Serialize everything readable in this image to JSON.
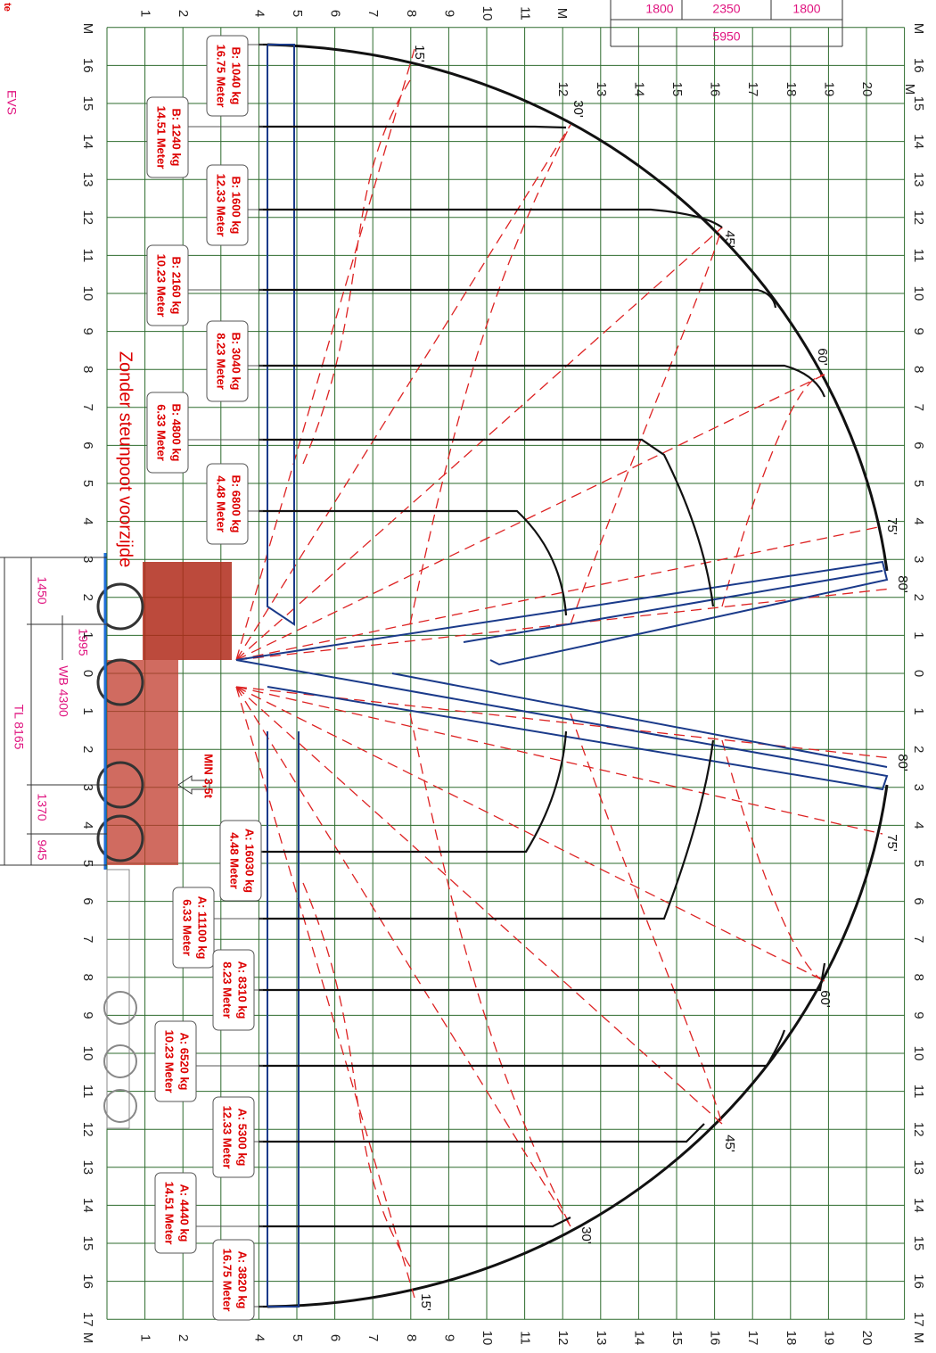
{
  "header": {
    "dims": [
      "1800",
      "2350",
      "1800"
    ],
    "total": "5950"
  },
  "axes": {
    "reach": [
      "M",
      "16",
      "15",
      "14",
      "13",
      "12",
      "11",
      "10",
      "9",
      "8",
      "7",
      "6",
      "5",
      "4",
      "3",
      "2",
      "1",
      "0",
      "1",
      "2",
      "3",
      "4",
      "5",
      "6",
      "7",
      "8",
      "9",
      "10",
      "11",
      "12",
      "13",
      "14",
      "15",
      "16",
      "17",
      "M"
    ],
    "height": [
      "1",
      "2",
      "4",
      "5",
      "6",
      "7",
      "8",
      "9",
      "10",
      "11",
      "12",
      "13",
      "14",
      "15",
      "16",
      "17",
      "18",
      "19",
      "20"
    ],
    "unit": "M"
  },
  "loads_b": [
    {
      "reach": "16.75 Meter",
      "load": "B: 1040 kg"
    },
    {
      "reach": "14.51 Meter",
      "load": "B: 1240 kg"
    },
    {
      "reach": "12.33 Meter",
      "load": "B: 1600 kg"
    },
    {
      "reach": "10.23 Meter",
      "load": "B: 2160 kg"
    },
    {
      "reach": "8.23 Meter",
      "load": "B: 3040 kg"
    },
    {
      "reach": "6.33 Meter",
      "load": "B: 4800 kg"
    },
    {
      "reach": "4.48 Meter",
      "load": "B: 6800 kg"
    }
  ],
  "loads_a": [
    {
      "reach": "4.48 Meter",
      "load": "A: 16030 kg"
    },
    {
      "reach": "6.33 Meter",
      "load": "A: 11100 kg"
    },
    {
      "reach": "8.23 Meter",
      "load": "A: 8310 kg"
    },
    {
      "reach": "10.23 Meter",
      "load": "A: 6520 kg"
    },
    {
      "reach": "12.33 Meter",
      "load": "A: 5300 kg"
    },
    {
      "reach": "14.51 Meter",
      "load": "A: 4440 kg"
    },
    {
      "reach": "16.75 Meter",
      "load": "A: 3820 kg"
    }
  ],
  "angles_top": [
    "15'",
    "30'",
    "45'",
    "60'",
    "75'",
    "80'"
  ],
  "angles_bottom": [
    "80'",
    "75'",
    "60'",
    "45'",
    "30'",
    "15'"
  ],
  "truck": {
    "d1": "1450",
    "d2": "1995",
    "wb": "WB 4300",
    "tl": "TL 8165",
    "d3": "1370",
    "d4": "945",
    "min": "MIN 3,5t"
  },
  "note": "Zonder steunpoot voorzijde",
  "mark": "EVS",
  "corner": "te"
}
